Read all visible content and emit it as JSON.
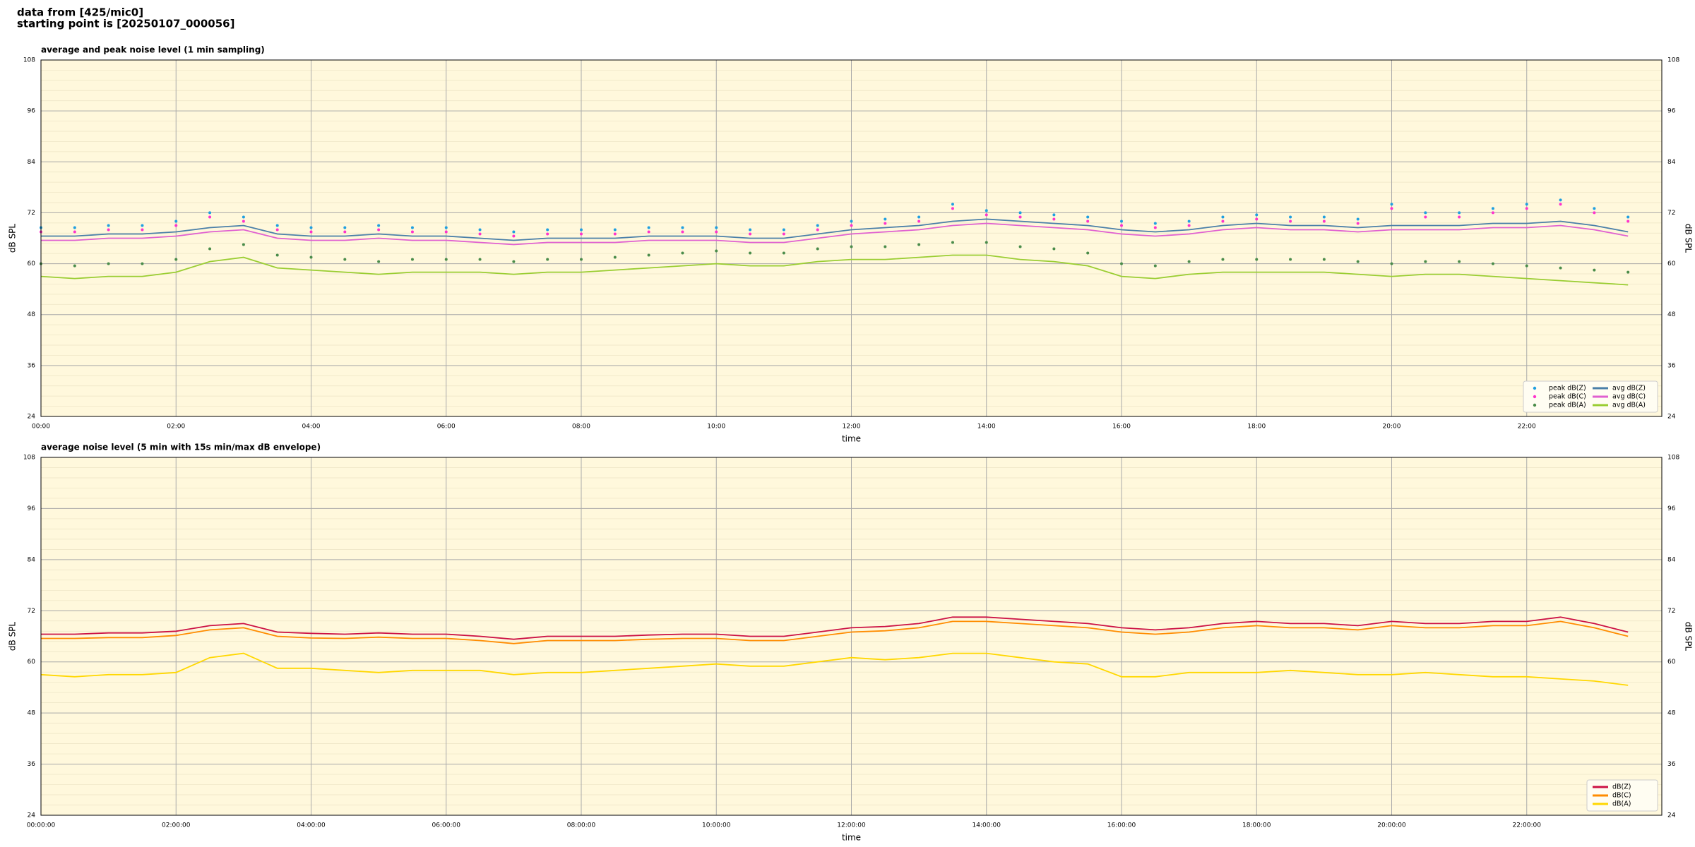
{
  "header": {
    "lines": [
      "data from [425/mic0]",
      "starting point is [20250107_000056]"
    ]
  },
  "chart_data": [
    {
      "type": "line",
      "title": "average and peak noise level (1 min sampling)",
      "xlabel": "time",
      "ylabel": "dB SPL",
      "x": [
        "00:00",
        "00:30",
        "01:00",
        "01:30",
        "02:00",
        "02:30",
        "03:00",
        "03:30",
        "04:00",
        "04:30",
        "05:00",
        "05:30",
        "06:00",
        "06:30",
        "07:00",
        "07:30",
        "08:00",
        "08:30",
        "09:00",
        "09:30",
        "10:00",
        "10:30",
        "11:00",
        "11:30",
        "12:00",
        "12:30",
        "13:00",
        "13:30",
        "14:00",
        "14:30",
        "15:00",
        "15:30",
        "16:00",
        "16:30",
        "17:00",
        "17:30",
        "18:00",
        "18:30",
        "19:00",
        "19:30",
        "20:00",
        "20:30",
        "21:00",
        "21:30",
        "22:00",
        "22:30",
        "23:00",
        "23:30"
      ],
      "xlim": [
        "00:00",
        "24:00"
      ],
      "xticks": [
        "00:00",
        "02:00",
        "04:00",
        "06:00",
        "08:00",
        "10:00",
        "12:00",
        "14:00",
        "16:00",
        "18:00",
        "20:00",
        "22:00"
      ],
      "ylim": [
        24,
        108
      ],
      "yticks": [
        24,
        36,
        48,
        60,
        72,
        84,
        96,
        108
      ],
      "grid": true,
      "legend": "lower right",
      "series": [
        {
          "name": "peak dB(Z)",
          "style": "points",
          "color": "#1f9fe0",
          "values": [
            68.5,
            68.5,
            69,
            69,
            70,
            72,
            71,
            69,
            68.5,
            68.5,
            69,
            68.5,
            68.5,
            68,
            67.5,
            68,
            68,
            68,
            68.5,
            68.5,
            68.5,
            68,
            68,
            69,
            70,
            70.5,
            71,
            74,
            72.5,
            72,
            71.5,
            71,
            70,
            69.5,
            70,
            71,
            71.5,
            71,
            71,
            70.5,
            74,
            72,
            72,
            73,
            74,
            75,
            73,
            71
          ]
        },
        {
          "name": "peak dB(C)",
          "style": "points",
          "color": "#ff33cc",
          "values": [
            67.5,
            67.5,
            68,
            68,
            69,
            71,
            70,
            68,
            67.5,
            67.5,
            68,
            67.5,
            67.5,
            67,
            66.5,
            67,
            67,
            67,
            67.5,
            67.5,
            67.5,
            67,
            67,
            68,
            69,
            69.5,
            70,
            73,
            71.5,
            71,
            70.5,
            70,
            69,
            68.5,
            69,
            70,
            70.5,
            70,
            70,
            69.5,
            73,
            71,
            71,
            72,
            73,
            74,
            72,
            70
          ]
        },
        {
          "name": "peak dB(A)",
          "style": "points",
          "color": "#4a8c4a",
          "values": [
            60,
            59.5,
            60,
            60,
            61,
            63.5,
            64.5,
            62,
            61.5,
            61,
            60.5,
            61,
            61,
            61,
            60.5,
            61,
            61,
            61.5,
            62,
            62.5,
            63,
            62.5,
            62.5,
            63.5,
            64,
            64,
            64.5,
            65,
            65,
            64,
            63.5,
            62.5,
            60,
            59.5,
            60.5,
            61,
            61,
            61,
            61,
            60.5,
            60,
            60.5,
            60.5,
            60,
            59.5,
            59,
            58.5,
            58
          ]
        },
        {
          "name": "avg dB(Z)",
          "style": "line",
          "color": "#4a7fa8",
          "values": [
            66.5,
            66.5,
            67,
            67,
            67.5,
            68.5,
            69,
            67,
            66.5,
            66.5,
            67,
            66.5,
            66.5,
            66,
            65.5,
            66,
            66,
            66,
            66.5,
            66.5,
            66.5,
            66,
            66,
            67,
            68,
            68.5,
            69,
            70,
            70.5,
            70,
            69.5,
            69,
            68,
            67.5,
            68,
            69,
            69.5,
            69,
            69,
            68.5,
            69,
            69,
            69,
            69.5,
            69.5,
            70,
            69,
            67.5
          ]
        },
        {
          "name": "avg dB(C)",
          "style": "line",
          "color": "#e060d0",
          "values": [
            65.5,
            65.5,
            66,
            66,
            66.5,
            67.5,
            68,
            66,
            65.5,
            65.5,
            66,
            65.5,
            65.5,
            65,
            64.5,
            65,
            65,
            65,
            65.5,
            65.5,
            65.5,
            65,
            65,
            66,
            67,
            67.5,
            68,
            69,
            69.5,
            69,
            68.5,
            68,
            67,
            66.5,
            67,
            68,
            68.5,
            68,
            68,
            67.5,
            68,
            68,
            68,
            68.5,
            68.5,
            69,
            68,
            66.5
          ]
        },
        {
          "name": "avg dB(A)",
          "style": "line",
          "color": "#9acd32",
          "values": [
            57,
            56.5,
            57,
            57,
            58,
            60.5,
            61.5,
            59,
            58.5,
            58,
            57.5,
            58,
            58,
            58,
            57.5,
            58,
            58,
            58.5,
            59,
            59.5,
            60,
            59.5,
            59.5,
            60.5,
            61,
            61,
            61.5,
            62,
            62,
            61,
            60.5,
            59.5,
            57,
            56.5,
            57.5,
            58,
            58,
            58,
            58,
            57.5,
            57,
            57.5,
            57.5,
            57,
            56.5,
            56,
            55.5,
            55
          ]
        }
      ]
    },
    {
      "type": "line",
      "title": "average noise level (5 min with 15s min/max dB envelope)",
      "xlabel": "time",
      "ylabel": "dB SPL",
      "x": [
        "00:00:00",
        "00:30:00",
        "01:00:00",
        "01:30:00",
        "02:00:00",
        "02:30:00",
        "03:00:00",
        "03:30:00",
        "04:00:00",
        "04:30:00",
        "05:00:00",
        "05:30:00",
        "06:00:00",
        "06:30:00",
        "07:00:00",
        "07:30:00",
        "08:00:00",
        "08:30:00",
        "09:00:00",
        "09:30:00",
        "10:00:00",
        "10:30:00",
        "11:00:00",
        "11:30:00",
        "12:00:00",
        "12:30:00",
        "13:00:00",
        "13:30:00",
        "14:00:00",
        "14:30:00",
        "15:00:00",
        "15:30:00",
        "16:00:00",
        "16:30:00",
        "17:00:00",
        "17:30:00",
        "18:00:00",
        "18:30:00",
        "19:00:00",
        "19:30:00",
        "20:00:00",
        "20:30:00",
        "21:00:00",
        "21:30:00",
        "22:00:00",
        "22:30:00",
        "23:00:00",
        "23:30:00"
      ],
      "xlim": [
        "00:00:00",
        "24:00:00"
      ],
      "xticks": [
        "00:00:00",
        "02:00:00",
        "04:00:00",
        "06:00:00",
        "08:00:00",
        "10:00:00",
        "12:00:00",
        "14:00:00",
        "16:00:00",
        "18:00:00",
        "20:00:00",
        "22:00:00"
      ],
      "ylim": [
        24,
        108
      ],
      "yticks": [
        24,
        36,
        48,
        60,
        72,
        84,
        96,
        108
      ],
      "grid": true,
      "legend": "lower right",
      "series": [
        {
          "name": "dB(Z)",
          "style": "line",
          "color": "#cc1144",
          "values": [
            66.5,
            66.5,
            66.8,
            66.8,
            67.2,
            68.5,
            69,
            67,
            66.7,
            66.5,
            66.8,
            66.5,
            66.5,
            66,
            65.3,
            66,
            66,
            66,
            66.3,
            66.5,
            66.5,
            66,
            66,
            67,
            68,
            68.3,
            69,
            70.5,
            70.5,
            70,
            69.5,
            69,
            68,
            67.5,
            68,
            69,
            69.5,
            69,
            69,
            68.5,
            69.5,
            69,
            69,
            69.5,
            69.5,
            70.5,
            69,
            67
          ]
        },
        {
          "name": "dB(C)",
          "style": "line",
          "color": "#ff8c00",
          "values": [
            65.5,
            65.5,
            65.7,
            65.7,
            66.2,
            67.5,
            68,
            66,
            65.6,
            65.5,
            65.8,
            65.5,
            65.5,
            65,
            64.3,
            65,
            65,
            65,
            65.3,
            65.5,
            65.5,
            65,
            65,
            66,
            67,
            67.3,
            68,
            69.5,
            69.5,
            69,
            68.5,
            68,
            67,
            66.5,
            67,
            68,
            68.5,
            68,
            68,
            67.5,
            68.5,
            68,
            68,
            68.5,
            68.5,
            69.5,
            68,
            66
          ]
        },
        {
          "name": "dB(A)",
          "style": "line",
          "color": "#ffd700",
          "values": [
            57,
            56.5,
            57,
            57,
            57.5,
            61,
            62,
            58.5,
            58.5,
            58,
            57.5,
            58,
            58,
            58,
            57,
            57.5,
            57.5,
            58,
            58.5,
            59,
            59.5,
            59,
            59,
            60,
            61,
            60.5,
            61,
            62,
            62,
            61,
            60,
            59.5,
            56.5,
            56.5,
            57.5,
            57.5,
            57.5,
            58,
            57.5,
            57,
            57,
            57.5,
            57,
            56.5,
            56.5,
            56,
            55.5,
            54.5
          ]
        }
      ]
    }
  ]
}
